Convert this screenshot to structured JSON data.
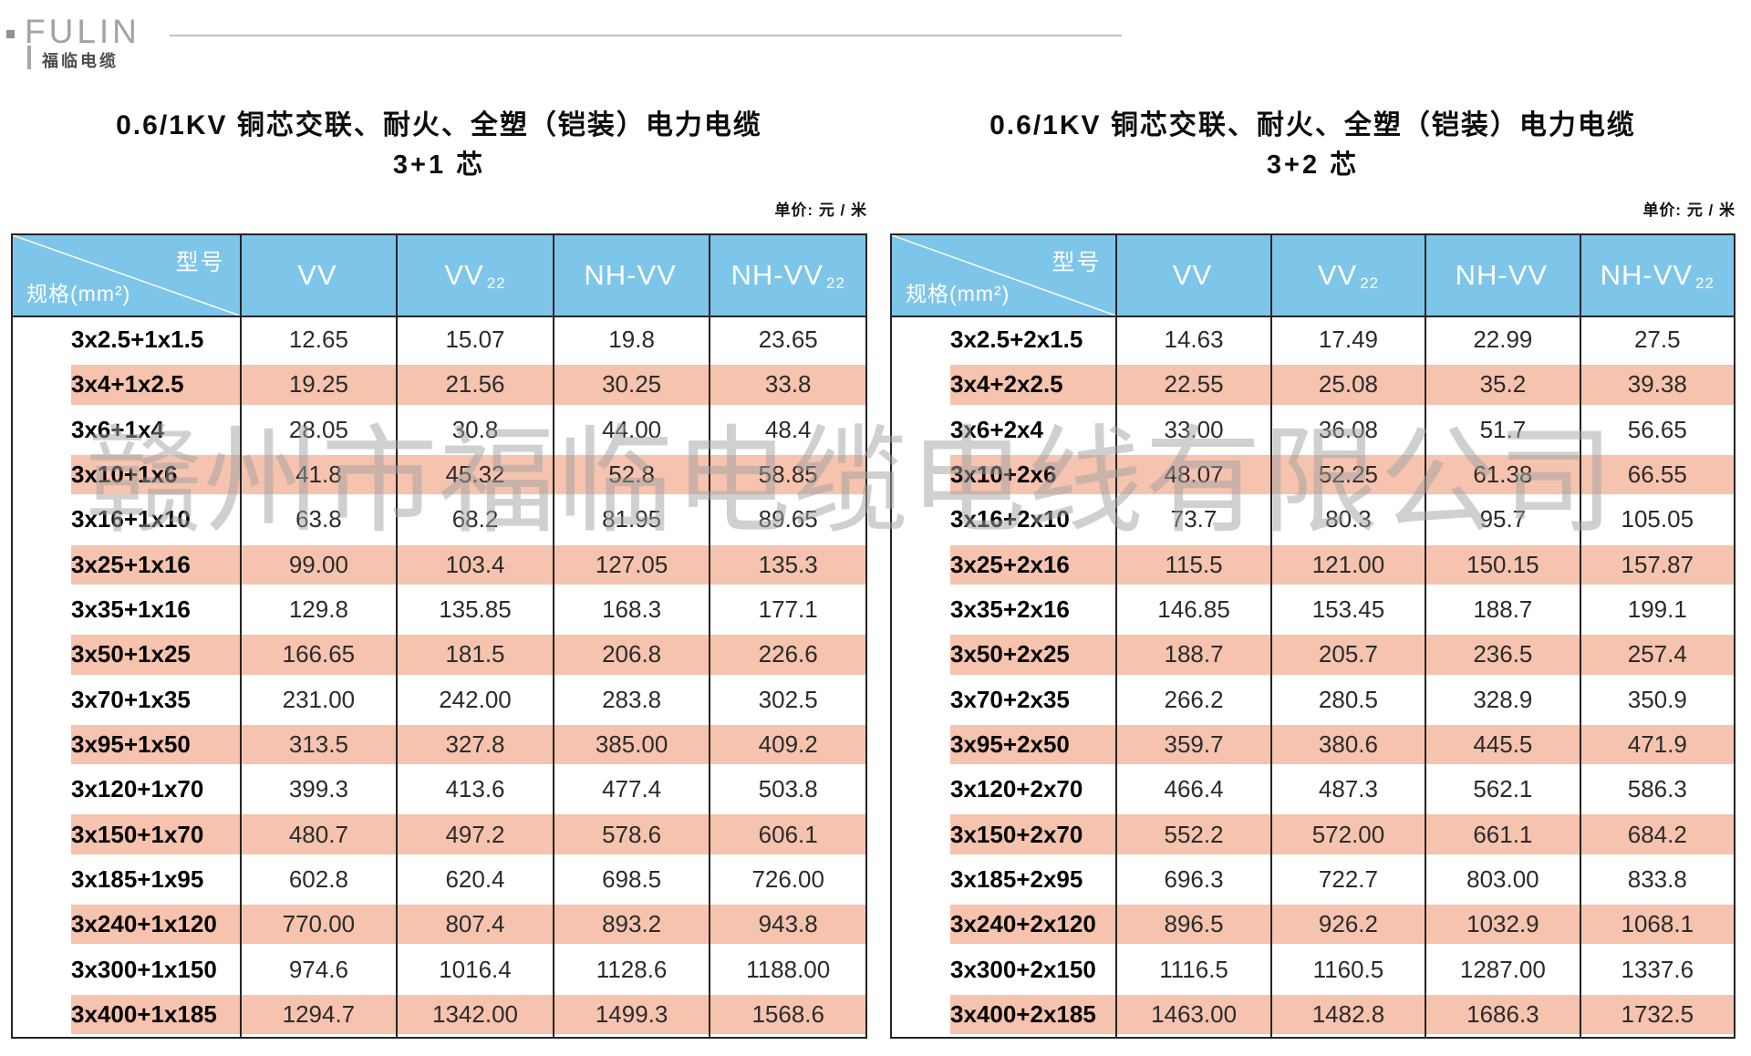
{
  "logo": {
    "brand": "FULIN",
    "subtext": "福临电缆"
  },
  "watermark": {
    "text": "赣州市福临电缆电线有限公司"
  },
  "colors": {
    "header_blue": "#7ec5ea",
    "row_pink": "#f5c3ae",
    "border_dark": "#242424",
    "logo_gray": "#a3a3a3",
    "watermark_gray": "#a2a2a2"
  },
  "tables": [
    {
      "title": "0.6/1KV 铜芯交联、耐火、全塑（铠装）电力电缆",
      "subtitle": "3+1 芯",
      "unit_label": "单价: 元 / 米",
      "corner": {
        "top": "型号",
        "bottom": "规格(mm²)"
      },
      "columns": [
        {
          "label": "VV",
          "sub": ""
        },
        {
          "label": "VV",
          "sub": "22"
        },
        {
          "label": "NH-VV",
          "sub": ""
        },
        {
          "label": "NH-VV",
          "sub": "22"
        }
      ],
      "rows": [
        {
          "spec": "3x2.5+1x1.5",
          "values": [
            "12.65",
            "15.07",
            "19.8",
            "23.65"
          ]
        },
        {
          "spec": "3x4+1x2.5",
          "values": [
            "19.25",
            "21.56",
            "30.25",
            "33.8"
          ]
        },
        {
          "spec": "3x6+1x4",
          "values": [
            "28.05",
            "30.8",
            "44.00",
            "48.4"
          ]
        },
        {
          "spec": "3x10+1x6",
          "values": [
            "41.8",
            "45.32",
            "52.8",
            "58.85"
          ]
        },
        {
          "spec": "3x16+1x10",
          "values": [
            "63.8",
            "68.2",
            "81.95",
            "89.65"
          ]
        },
        {
          "spec": "3x25+1x16",
          "values": [
            "99.00",
            "103.4",
            "127.05",
            "135.3"
          ]
        },
        {
          "spec": "3x35+1x16",
          "values": [
            "129.8",
            "135.85",
            "168.3",
            "177.1"
          ]
        },
        {
          "spec": "3x50+1x25",
          "values": [
            "166.65",
            "181.5",
            "206.8",
            "226.6"
          ]
        },
        {
          "spec": "3x70+1x35",
          "values": [
            "231.00",
            "242.00",
            "283.8",
            "302.5"
          ]
        },
        {
          "spec": "3x95+1x50",
          "values": [
            "313.5",
            "327.8",
            "385.00",
            "409.2"
          ]
        },
        {
          "spec": "3x120+1x70",
          "values": [
            "399.3",
            "413.6",
            "477.4",
            "503.8"
          ]
        },
        {
          "spec": "3x150+1x70",
          "values": [
            "480.7",
            "497.2",
            "578.6",
            "606.1"
          ]
        },
        {
          "spec": "3x185+1x95",
          "values": [
            "602.8",
            "620.4",
            "698.5",
            "726.00"
          ]
        },
        {
          "spec": "3x240+1x120",
          "values": [
            "770.00",
            "807.4",
            "893.2",
            "943.8"
          ]
        },
        {
          "spec": "3x300+1x150",
          "values": [
            "974.6",
            "1016.4",
            "1128.6",
            "1188.00"
          ]
        },
        {
          "spec": "3x400+1x185",
          "values": [
            "1294.7",
            "1342.00",
            "1499.3",
            "1568.6"
          ]
        }
      ]
    },
    {
      "title": "0.6/1KV 铜芯交联、耐火、全塑（铠装）电力电缆",
      "subtitle": "3+2 芯",
      "unit_label": "单价: 元 / 米",
      "corner": {
        "top": "型号",
        "bottom": "规格(mm²)"
      },
      "columns": [
        {
          "label": "VV",
          "sub": ""
        },
        {
          "label": "VV",
          "sub": "22"
        },
        {
          "label": "NH-VV",
          "sub": ""
        },
        {
          "label": "NH-VV",
          "sub": "22"
        }
      ],
      "rows": [
        {
          "spec": "3x2.5+2x1.5",
          "values": [
            "14.63",
            "17.49",
            "22.99",
            "27.5"
          ]
        },
        {
          "spec": "3x4+2x2.5",
          "values": [
            "22.55",
            "25.08",
            "35.2",
            "39.38"
          ]
        },
        {
          "spec": "3x6+2x4",
          "values": [
            "33.00",
            "36.08",
            "51.7",
            "56.65"
          ]
        },
        {
          "spec": "3x10+2x6",
          "values": [
            "48.07",
            "52.25",
            "61.38",
            "66.55"
          ]
        },
        {
          "spec": "3x16+2x10",
          "values": [
            "73.7",
            "80.3",
            "95.7",
            "105.05"
          ]
        },
        {
          "spec": "3x25+2x16",
          "values": [
            "115.5",
            "121.00",
            "150.15",
            "157.87"
          ]
        },
        {
          "spec": "3x35+2x16",
          "values": [
            "146.85",
            "153.45",
            "188.7",
            "199.1"
          ]
        },
        {
          "spec": "3x50+2x25",
          "values": [
            "188.7",
            "205.7",
            "236.5",
            "257.4"
          ]
        },
        {
          "spec": "3x70+2x35",
          "values": [
            "266.2",
            "280.5",
            "328.9",
            "350.9"
          ]
        },
        {
          "spec": "3x95+2x50",
          "values": [
            "359.7",
            "380.6",
            "445.5",
            "471.9"
          ]
        },
        {
          "spec": "3x120+2x70",
          "values": [
            "466.4",
            "487.3",
            "562.1",
            "586.3"
          ]
        },
        {
          "spec": "3x150+2x70",
          "values": [
            "552.2",
            "572.00",
            "661.1",
            "684.2"
          ]
        },
        {
          "spec": "3x185+2x95",
          "values": [
            "696.3",
            "722.7",
            "803.00",
            "833.8"
          ]
        },
        {
          "spec": "3x240+2x120",
          "values": [
            "896.5",
            "926.2",
            "1032.9",
            "1068.1"
          ]
        },
        {
          "spec": "3x300+2x150",
          "values": [
            "1116.5",
            "1160.5",
            "1287.00",
            "1337.6"
          ]
        },
        {
          "spec": "3x400+2x185",
          "values": [
            "1463.00",
            "1482.8",
            "1686.3",
            "1732.5"
          ]
        }
      ]
    }
  ]
}
